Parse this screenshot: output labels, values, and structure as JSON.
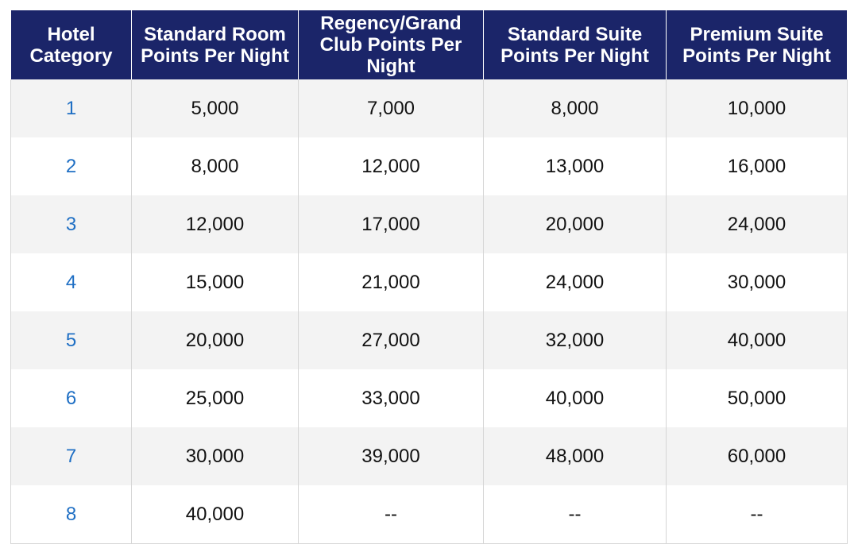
{
  "table": {
    "headers": [
      "Hotel Category",
      "Standard Room Points Per Night",
      "Regency/Grand Club Points Per Night",
      "Standard Suite Points Per Night",
      "Premium Suite Points Per Night"
    ],
    "rows": [
      [
        "1",
        "5,000",
        "7,000",
        "8,000",
        "10,000"
      ],
      [
        "2",
        "8,000",
        "12,000",
        "13,000",
        "16,000"
      ],
      [
        "3",
        "12,000",
        "17,000",
        "20,000",
        "24,000"
      ],
      [
        "4",
        "15,000",
        "21,000",
        "24,000",
        "30,000"
      ],
      [
        "5",
        "20,000",
        "27,000",
        "32,000",
        "40,000"
      ],
      [
        "6",
        "25,000",
        "33,000",
        "40,000",
        "50,000"
      ],
      [
        "7",
        "30,000",
        "39,000",
        "48,000",
        "60,000"
      ],
      [
        "8",
        "40,000",
        "--",
        "--",
        "--"
      ]
    ]
  }
}
